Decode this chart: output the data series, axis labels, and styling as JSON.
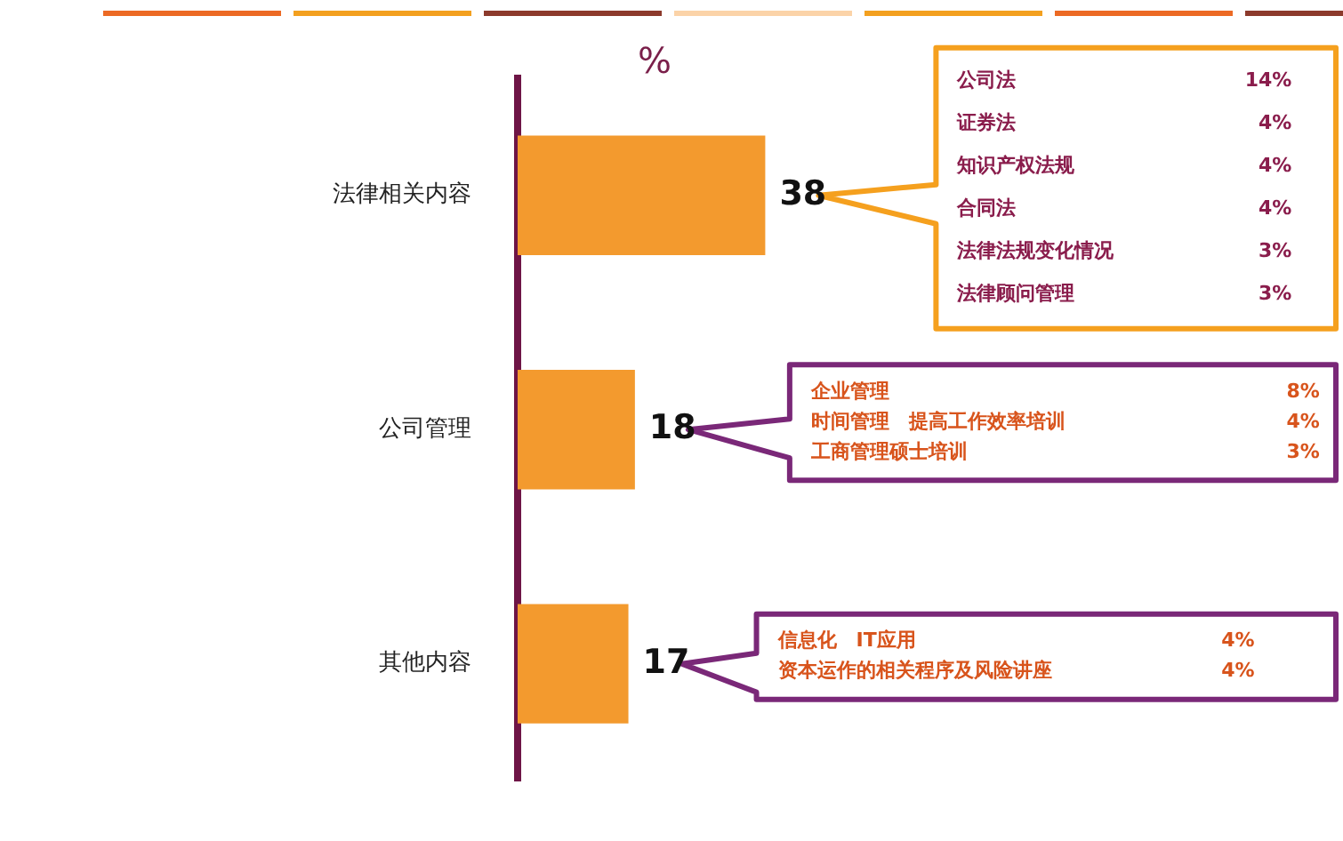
{
  "chart_data": {
    "type": "bar",
    "orientation": "horizontal",
    "xlabel": "%",
    "categories": [
      "法律相关内容",
      "公司管理",
      "其他内容"
    ],
    "values": [
      38,
      18,
      17
    ],
    "color": "#f39a2e",
    "data_labels": true,
    "legend": false,
    "annotations": [
      "公司法",
      "14%",
      "证券法",
      "4%",
      "知识产权法规",
      "4%",
      "合同法",
      "4%",
      "法律法规变化情况",
      "3%",
      "法律顾问管理",
      "3%",
      "企业管理",
      "8%",
      "时间管理　提高工作效率培训",
      "4%",
      "工商管理硕士培训",
      "3%",
      "信息化　IT应用",
      "4%",
      "资本运作的相关程序及风险讲座",
      "4%"
    ]
  }
}
